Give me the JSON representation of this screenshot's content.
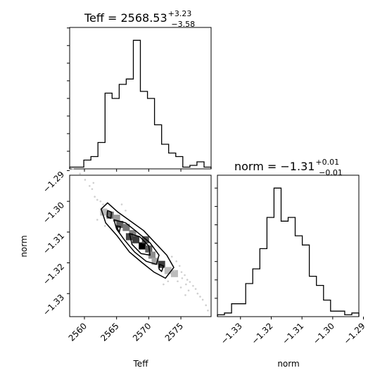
{
  "chart_data": {
    "type": "corner",
    "parameters": [
      "Teff",
      "norm"
    ],
    "teff_title": {
      "prefix": "Teff = 2568.53",
      "sup": "+3.23",
      "sub": "−3.58"
    },
    "norm_title": {
      "prefix": "norm = −1.31",
      "sup": "+0.01",
      "sub": "−0.01"
    },
    "teff_hist": {
      "bin_edges": [
        2557.7,
        2558.8,
        2559.9,
        2561.0,
        2562.1,
        2563.2,
        2564.3,
        2565.4,
        2566.5,
        2567.6,
        2568.7,
        2569.8,
        2570.9,
        2572.0,
        2573.1,
        2574.2,
        2575.3,
        2576.4,
        2577.5,
        2578.6,
        2579.7
      ],
      "counts": [
        1,
        1,
        5,
        7,
        15,
        43,
        40,
        48,
        51,
        73,
        44,
        40,
        25,
        14,
        9,
        7,
        1,
        2,
        4,
        1
      ]
    },
    "norm_hist": {
      "bin_edges": [
        -1.3375,
        -1.3352,
        -1.3329,
        -1.3306,
        -1.3283,
        -1.326,
        -1.3237,
        -1.3214,
        -1.3191,
        -1.3168,
        -1.3145,
        -1.3122,
        -1.3099,
        -1.3076,
        -1.3053,
        -1.303,
        -1.3007,
        -1.2984,
        -1.2961,
        -1.2938,
        -1.2915
      ],
      "counts": [
        1,
        2,
        7,
        7,
        18,
        26,
        37,
        54,
        70,
        52,
        54,
        44,
        39,
        22,
        17,
        9,
        3,
        3,
        1,
        2
      ]
    },
    "xlim_teff": [
      2557.7,
      2579.7
    ],
    "ylim_norm": [
      -1.3375,
      -1.2915
    ],
    "teff_ticks": [
      2560,
      2565,
      2570,
      2575
    ],
    "norm_ticks": [
      -1.33,
      -1.32,
      -1.31,
      -1.3,
      -1.29
    ],
    "teff_tick_labels": [
      "2560",
      "2565",
      "2570",
      "2575"
    ],
    "norm_tick_labels": [
      "−1.33",
      "−1.32",
      "−1.31",
      "−1.30",
      "−1.29"
    ],
    "xlabel_teff": "Teff",
    "xlabel_norm": "norm",
    "ylabel_norm": "norm",
    "density_cells": [
      {
        "x": 2563.0,
        "y": -1.3035,
        "level": 0.2
      },
      {
        "x": 2564.0,
        "y": -1.3045,
        "level": 0.55
      },
      {
        "x": 2565.0,
        "y": -1.3055,
        "level": 0.35
      },
      {
        "x": 2565.5,
        "y": -1.3075,
        "level": 0.6
      },
      {
        "x": 2566.5,
        "y": -1.3085,
        "level": 0.5
      },
      {
        "x": 2567.5,
        "y": -1.3105,
        "level": 0.45
      },
      {
        "x": 2567.0,
        "y": -1.3115,
        "level": 0.7
      },
      {
        "x": 2568.0,
        "y": -1.3125,
        "level": 0.75
      },
      {
        "x": 2569.0,
        "y": -1.3145,
        "level": 1.0
      },
      {
        "x": 2569.5,
        "y": -1.3125,
        "level": 0.65
      },
      {
        "x": 2570.0,
        "y": -1.3155,
        "level": 0.6
      },
      {
        "x": 2570.5,
        "y": -1.3175,
        "level": 0.4
      },
      {
        "x": 2571.0,
        "y": -1.3195,
        "level": 0.3
      },
      {
        "x": 2572.0,
        "y": -1.3205,
        "level": 0.75
      },
      {
        "x": 2573.0,
        "y": -1.3225,
        "level": 0.2
      },
      {
        "x": 2574.0,
        "y": -1.3235,
        "level": 0.2
      }
    ],
    "contours": [
      [
        [
          2562.6,
          -1.3025
        ],
        [
          2563.6,
          -1.3005
        ],
        [
          2565.2,
          -1.3035
        ],
        [
          2567.2,
          -1.3065
        ],
        [
          2569.2,
          -1.3095
        ],
        [
          2571.0,
          -1.3135
        ],
        [
          2572.8,
          -1.3175
        ],
        [
          2573.9,
          -1.3215
        ],
        [
          2572.6,
          -1.325
        ],
        [
          2570.8,
          -1.323
        ],
        [
          2569.0,
          -1.32
        ],
        [
          2567.0,
          -1.3165
        ],
        [
          2565.0,
          -1.311
        ],
        [
          2563.3,
          -1.307
        ]
      ],
      [
        [
          2564.6,
          -1.306
        ],
        [
          2566.4,
          -1.307
        ],
        [
          2568.2,
          -1.31
        ],
        [
          2570.2,
          -1.3135
        ],
        [
          2571.6,
          -1.3175
        ],
        [
          2571.2,
          -1.3205
        ],
        [
          2569.6,
          -1.3195
        ],
        [
          2567.8,
          -1.3165
        ],
        [
          2566.2,
          -1.3125
        ],
        [
          2565.0,
          -1.309
        ]
      ],
      [
        [
          2567.0,
          -1.3105
        ],
        [
          2568.6,
          -1.3115
        ],
        [
          2570.0,
          -1.3145
        ],
        [
          2570.2,
          -1.3175
        ],
        [
          2568.8,
          -1.317
        ],
        [
          2567.4,
          -1.314
        ]
      ],
      [
        [
          2563.6,
          -1.303
        ],
        [
          2564.2,
          -1.3035
        ],
        [
          2564.1,
          -1.3055
        ],
        [
          2563.5,
          -1.305
        ]
      ],
      [
        [
          2565.0,
          -1.308
        ],
        [
          2565.6,
          -1.3082
        ],
        [
          2565.4,
          -1.3102
        ]
      ],
      [
        [
          2571.7,
          -1.3205
        ],
        [
          2572.3,
          -1.321
        ],
        [
          2572.0,
          -1.3228
        ],
        [
          2571.6,
          -1.322
        ]
      ]
    ],
    "scatter": [
      [
        2558.2,
        -1.2895
      ],
      [
        2559.3,
        -1.291
      ],
      [
        2560.1,
        -1.293
      ],
      [
        2560.8,
        -1.295
      ],
      [
        2561.2,
        -1.296
      ],
      [
        2561.6,
        -1.2985
      ],
      [
        2562.0,
        -1.2995
      ],
      [
        2561.4,
        -1.294
      ],
      [
        2562.5,
        -1.3
      ],
      [
        2562.9,
        -1.301
      ],
      [
        2565.8,
        -1.301
      ],
      [
        2566.4,
        -1.303
      ],
      [
        2562.0,
        -1.306
      ],
      [
        2563.2,
        -1.308
      ],
      [
        2573.6,
        -1.318
      ],
      [
        2574.3,
        -1.3195
      ],
      [
        2574.8,
        -1.321
      ],
      [
        2575.1,
        -1.323
      ],
      [
        2575.6,
        -1.324
      ],
      [
        2575.2,
        -1.325
      ],
      [
        2576.0,
        -1.3255
      ],
      [
        2576.4,
        -1.3262
      ],
      [
        2575.8,
        -1.327
      ],
      [
        2576.9,
        -1.3275
      ],
      [
        2577.3,
        -1.3285
      ],
      [
        2576.2,
        -1.329
      ],
      [
        2577.6,
        -1.33
      ],
      [
        2578.0,
        -1.331
      ],
      [
        2578.4,
        -1.332
      ],
      [
        2578.9,
        -1.3338
      ],
      [
        2579.2,
        -1.3355
      ],
      [
        2574.5,
        -1.326
      ],
      [
        2573.0,
        -1.326
      ],
      [
        2572.3,
        -1.327
      ],
      [
        2575.0,
        -1.328
      ],
      [
        2574.0,
        -1.3225
      ],
      [
        2575.7,
        -1.3305
      ]
    ]
  }
}
